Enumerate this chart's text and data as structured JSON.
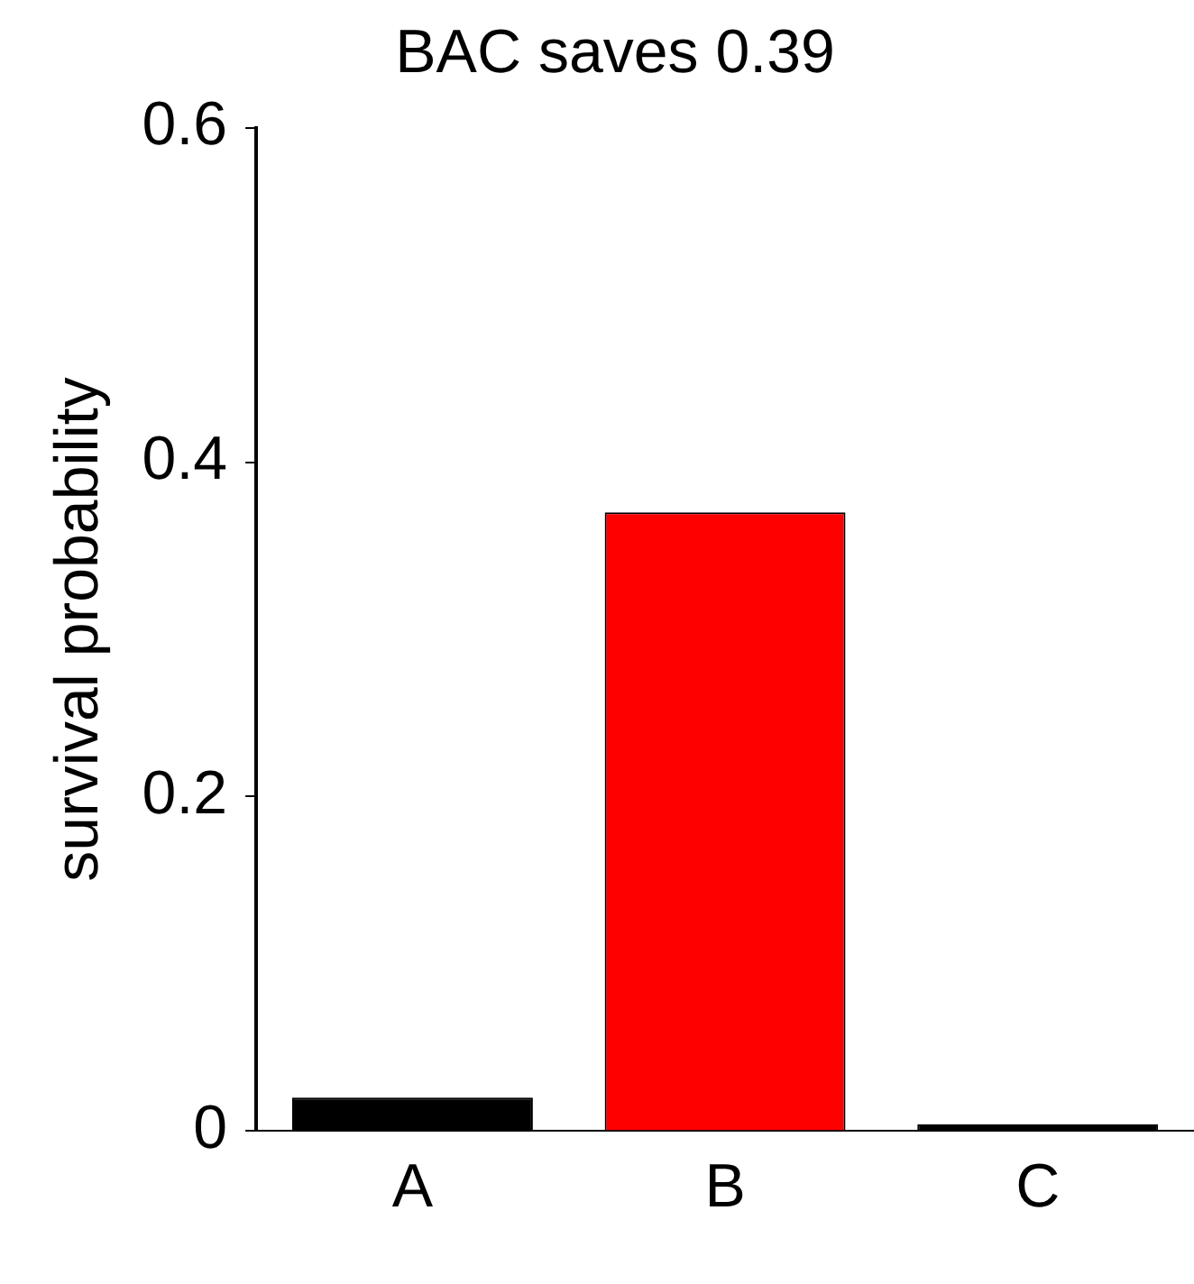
{
  "chart_data": {
    "type": "bar",
    "title": "BAC saves 0.39",
    "ylabel": "survival probability",
    "categories": [
      "A",
      "B",
      "C"
    ],
    "values": [
      0.02,
      0.37,
      0.004
    ],
    "colors": [
      "#000000",
      "#ff0000",
      "#000000"
    ],
    "ylim": [
      0,
      0.6
    ],
    "yticks": [
      0,
      0.2,
      0.4,
      0.6
    ],
    "grid": false,
    "legend": false
  }
}
